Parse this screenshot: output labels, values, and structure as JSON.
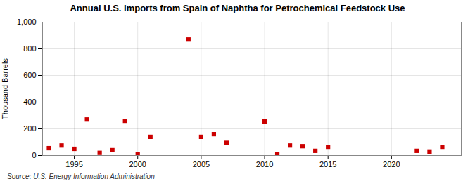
{
  "chart_data": {
    "type": "scatter",
    "title": "Annual U.S. Imports from Spain of Naphtha for Petrochemical Feedstock Use",
    "ylabel": "Thousand Barrels",
    "source": "Source: U.S. Energy Information Administration",
    "x": [
      1993,
      1994,
      1995,
      1996,
      1997,
      1998,
      1999,
      2000,
      2001,
      2004,
      2005,
      2006,
      2007,
      2010,
      2011,
      2012,
      2013,
      2014,
      2015,
      2022,
      2023,
      2024
    ],
    "values": [
      55,
      75,
      50,
      270,
      20,
      40,
      260,
      10,
      140,
      870,
      140,
      160,
      95,
      255,
      10,
      75,
      70,
      35,
      60,
      35,
      25,
      60
    ],
    "color": "#cc0000",
    "marker": "square",
    "xlim": [
      1992.5,
      2025.5
    ],
    "xticks": [
      1995,
      2000,
      2005,
      2010,
      2015,
      2020
    ],
    "ylim": [
      0,
      1000
    ],
    "yticks": [
      0,
      200,
      400,
      600,
      800,
      {
        "value": 1000,
        "label": "1,000"
      }
    ],
    "grid": true
  }
}
